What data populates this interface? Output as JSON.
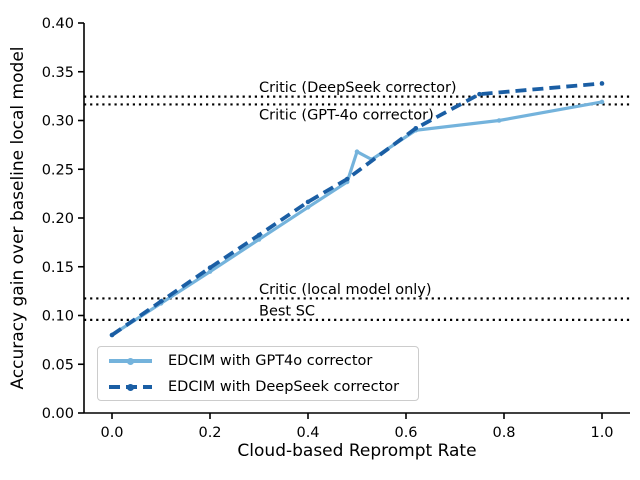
{
  "figure": {
    "background": "#ffffff",
    "axis_color": "#000000"
  },
  "chart_data": {
    "type": "line",
    "title": "",
    "xlabel": "Cloud-based Reprompt Rate",
    "ylabel": "Accuracy gain over baseline local model",
    "xlim": [
      -0.057,
      1.057
    ],
    "ylim": [
      0.0,
      0.4
    ],
    "grid": false,
    "legend_position": "lower-left-inside",
    "x_ticks": [
      0.0,
      0.2,
      0.4,
      0.6,
      0.8,
      1.0
    ],
    "x_tick_labels": [
      "0.0",
      "0.2",
      "0.4",
      "0.6",
      "0.8",
      "1.0"
    ],
    "y_ticks": [
      0.0,
      0.05,
      0.1,
      0.15,
      0.2,
      0.25,
      0.3,
      0.35,
      0.4
    ],
    "y_tick_labels": [
      "0.00",
      "0.05",
      "0.10",
      "0.15",
      "0.20",
      "0.25",
      "0.30",
      "0.35",
      "0.40"
    ],
    "series": [
      {
        "name": "EDCIM with GPT4o corrector",
        "color": "#74b3dc",
        "style": "solid",
        "marker": "circle",
        "points": [
          [
            0.0,
            0.08
          ],
          [
            0.1,
            0.1125
          ],
          [
            0.2,
            0.145
          ],
          [
            0.3,
            0.178
          ],
          [
            0.4,
            0.211
          ],
          [
            0.48,
            0.237
          ],
          [
            0.5,
            0.268
          ],
          [
            0.53,
            0.26
          ],
          [
            0.62,
            0.29
          ],
          [
            0.79,
            0.3
          ],
          [
            1.0,
            0.319
          ]
        ]
      },
      {
        "name": "EDCIM with DeepSeek corrector",
        "color": "#1a5ea4",
        "style": "dashed",
        "marker": "circle",
        "points": [
          [
            0.0,
            0.08
          ],
          [
            0.1,
            0.1145
          ],
          [
            0.2,
            0.149
          ],
          [
            0.3,
            0.1825
          ],
          [
            0.4,
            0.2165
          ],
          [
            0.48,
            0.24
          ],
          [
            0.62,
            0.292
          ],
          [
            0.75,
            0.327
          ],
          [
            1.0,
            0.338
          ]
        ]
      }
    ],
    "hlines": [
      {
        "y": 0.3245,
        "label": "Critic (DeepSeek corrector)",
        "label_x": 0.3,
        "label_side": "above",
        "color": "#000000"
      },
      {
        "y": 0.3165,
        "label": "Critic (GPT-4o corrector)",
        "label_x": 0.3,
        "label_side": "below",
        "color": "#000000"
      },
      {
        "y": 0.1175,
        "label": "Critic (local model only)",
        "label_x": 0.3,
        "label_side": "above",
        "color": "#000000"
      },
      {
        "y": 0.0955,
        "label": "Best SC",
        "label_x": 0.3,
        "label_side": "above",
        "color": "#000000"
      }
    ]
  }
}
